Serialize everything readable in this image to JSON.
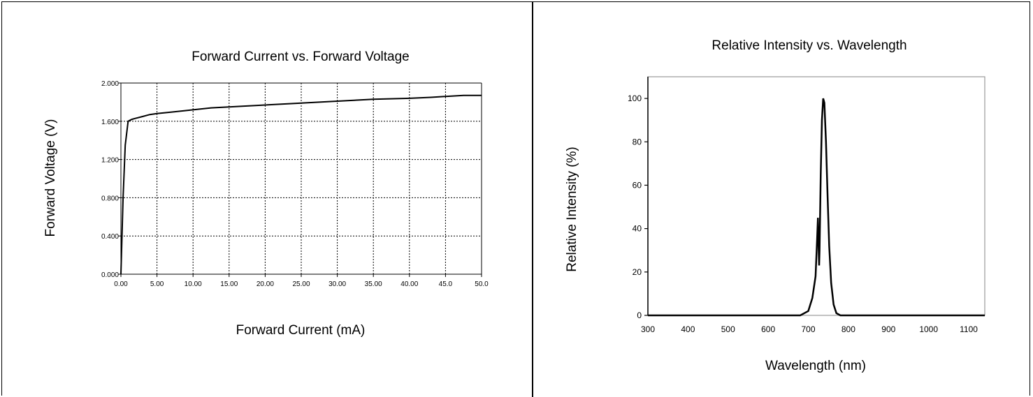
{
  "charts": {
    "left": {
      "title": "Forward Current vs. Forward Voltage",
      "xlabel": "Forward Current (mA)",
      "ylabel": "Forward Voltage (V)"
    },
    "right": {
      "title": "Relative Intensity vs. Wavelength",
      "xlabel": "Wavelength (nm)",
      "ylabel": "Relative Intensity (%)"
    }
  },
  "chart_data": [
    {
      "type": "line",
      "title": "Forward Current vs. Forward Voltage",
      "xlabel": "Forward Current (mA)",
      "ylabel": "Forward Voltage (V)",
      "xlim": [
        0,
        50
      ],
      "ylim": [
        0,
        2.0
      ],
      "grid": true,
      "line_color": "#000000",
      "x_ticks": [
        "0.00",
        "5.00",
        "10.00",
        "15.00",
        "20.00",
        "25.00",
        "30.00",
        "35.00",
        "40.00",
        "45.0",
        "50.0"
      ],
      "y_ticks": [
        "0.000",
        "0.400",
        "0.800",
        "1.200",
        "1.600",
        "2.000"
      ],
      "series": [
        {
          "x": [
            0,
            0.3,
            0.6,
            1.0,
            1.5,
            2.0,
            3.0,
            4.0,
            5.0,
            7.5,
            10,
            12.5,
            15,
            20,
            25,
            30,
            35,
            40,
            43,
            45,
            47.5,
            50
          ],
          "y": [
            0,
            0.8,
            1.35,
            1.6,
            1.62,
            1.63,
            1.65,
            1.67,
            1.68,
            1.7,
            1.72,
            1.74,
            1.75,
            1.77,
            1.79,
            1.81,
            1.83,
            1.84,
            1.85,
            1.86,
            1.87,
            1.87
          ]
        }
      ]
    },
    {
      "type": "line",
      "title": "Relative Intensity vs. Wavelength",
      "xlabel": "Wavelength (nm)",
      "ylabel": "Relative Intensity (%)",
      "xlim": [
        300,
        1140
      ],
      "ylim": [
        0,
        110
      ],
      "grid": false,
      "line_color": "#000000",
      "x_ticks": [
        "300",
        "400",
        "500",
        "600",
        "700",
        "800",
        "900",
        "1000",
        "1100"
      ],
      "y_ticks": [
        "0",
        "20",
        "40",
        "60",
        "80",
        "100"
      ],
      "series": [
        {
          "x": [
            300,
            680,
            700,
            710,
            718,
            722,
            724,
            726,
            727,
            728,
            731,
            734,
            737,
            740,
            744,
            748,
            752,
            757,
            763,
            770,
            780,
            1140
          ],
          "y": [
            0,
            0,
            2,
            8,
            18,
            35,
            45,
            30,
            23,
            30,
            65,
            90,
            100,
            98,
            80,
            55,
            32,
            15,
            5,
            1,
            0,
            0
          ]
        }
      ]
    }
  ]
}
